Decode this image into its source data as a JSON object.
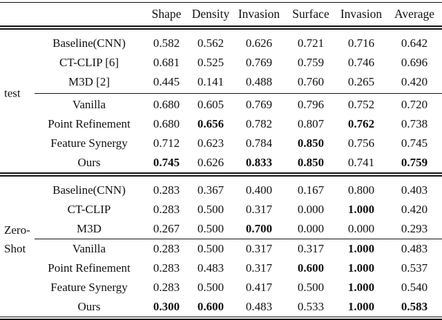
{
  "page": {
    "background": "#ffffff",
    "text_color": "#101010"
  },
  "table": {
    "headers": {
      "shape": "Shape",
      "density": "Density",
      "invasion": "Invasion",
      "surface": "Surface",
      "invasion2": "Invasion",
      "average": "Average"
    },
    "sections": [
      {
        "label_lines": [
          "test"
        ],
        "midrule_after_row": 2,
        "rows": [
          {
            "method": "Baseline(CNN)",
            "values": [
              "0.582",
              "0.562",
              "0.626",
              "0.721",
              "0.716",
              "0.642"
            ],
            "bold": [
              false,
              false,
              false,
              false,
              false,
              false
            ]
          },
          {
            "method": "CT-CLIP [6]",
            "values": [
              "0.681",
              "0.525",
              "0.769",
              "0.759",
              "0.746",
              "0.696"
            ],
            "bold": [
              false,
              false,
              false,
              false,
              false,
              false
            ]
          },
          {
            "method": "M3D [2]",
            "values": [
              "0.445",
              "0.141",
              "0.488",
              "0.760",
              "0.265",
              "0.420"
            ],
            "bold": [
              false,
              false,
              false,
              false,
              false,
              false
            ]
          },
          {
            "method": "Vanilla",
            "values": [
              "0.680",
              "0.605",
              "0.769",
              "0.796",
              "0.752",
              "0.720"
            ],
            "bold": [
              false,
              false,
              false,
              false,
              false,
              false
            ]
          },
          {
            "method": "Point Refinement",
            "values": [
              "0.680",
              "0.656",
              "0.782",
              "0.807",
              "0.762",
              "0.738"
            ],
            "bold": [
              false,
              true,
              false,
              false,
              true,
              false
            ]
          },
          {
            "method": "Feature Synergy",
            "values": [
              "0.712",
              "0.623",
              "0.784",
              "0.850",
              "0.756",
              "0.745"
            ],
            "bold": [
              false,
              false,
              false,
              true,
              false,
              false
            ]
          },
          {
            "method": "Ours",
            "values": [
              "0.745",
              "0.626",
              "0.833",
              "0.850",
              "0.741",
              "0.759"
            ],
            "bold": [
              true,
              false,
              true,
              true,
              false,
              true
            ]
          }
        ]
      },
      {
        "label_lines": [
          "Zero-",
          "Shot"
        ],
        "midrule_after_row": 2,
        "rows": [
          {
            "method": "Baseline(CNN)",
            "values": [
              "0.283",
              "0.367",
              "0.400",
              "0.167",
              "0.800",
              "0.403"
            ],
            "bold": [
              false,
              false,
              false,
              false,
              false,
              false
            ]
          },
          {
            "method": "CT-CLIP",
            "values": [
              "0.283",
              "0.500",
              "0.317",
              "0.000",
              "1.000",
              "0.420"
            ],
            "bold": [
              false,
              false,
              false,
              false,
              true,
              false
            ]
          },
          {
            "method": "M3D",
            "values": [
              "0.267",
              "0.500",
              "0.700",
              "0.000",
              "0.000",
              "0.293"
            ],
            "bold": [
              false,
              false,
              true,
              false,
              false,
              false
            ]
          },
          {
            "method": "Vanilla",
            "values": [
              "0.283",
              "0.500",
              "0.317",
              "0.317",
              "1.000",
              "0.483"
            ],
            "bold": [
              false,
              false,
              false,
              false,
              true,
              false
            ]
          },
          {
            "method": "Point Refinement",
            "values": [
              "0.283",
              "0.483",
              "0.317",
              "0.600",
              "1.000",
              "0.537"
            ],
            "bold": [
              false,
              false,
              false,
              true,
              true,
              false
            ]
          },
          {
            "method": "Feature Synergy",
            "values": [
              "0.283",
              "0.500",
              "0.417",
              "0.500",
              "1.000",
              "0.540"
            ],
            "bold": [
              false,
              false,
              false,
              false,
              true,
              false
            ]
          },
          {
            "method": "Ours",
            "values": [
              "0.300",
              "0.600",
              "0.483",
              "0.533",
              "1.000",
              "0.583"
            ],
            "bold": [
              true,
              true,
              false,
              false,
              true,
              true
            ]
          }
        ]
      }
    ]
  }
}
